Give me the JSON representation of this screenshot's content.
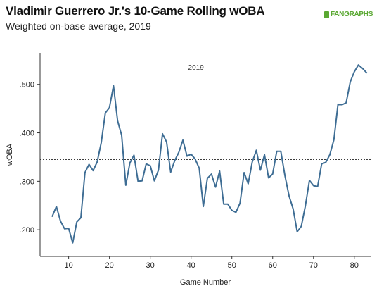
{
  "header": {
    "title": "Vladimir Guerrero Jr.'s 10-Game Rolling wOBA",
    "subtitle": "Weighted on-base average, 2019",
    "logo_text": "FANGRAPHS",
    "logo_color": "#5aa832"
  },
  "chart_data": {
    "type": "line",
    "title": "Vladimir Guerrero Jr.'s 10-Game Rolling wOBA",
    "subtitle": "Weighted on-base average, 2019",
    "xlabel": "Game Number",
    "ylabel": "wOBA",
    "annotation": "2019",
    "xlim": [
      3,
      84
    ],
    "ylim": [
      0.145,
      0.565
    ],
    "xticks": [
      10,
      20,
      30,
      40,
      50,
      60,
      70,
      80
    ],
    "yticks": [
      0.2,
      0.3,
      0.4,
      0.5
    ],
    "ytick_labels": [
      ".200",
      ".300",
      ".400",
      ".500"
    ],
    "line_color": "#3e6d94",
    "grid": false,
    "reference_line": {
      "value": 0.345,
      "style": "dotted"
    },
    "series": [
      {
        "x": [
          6,
          7,
          8,
          9,
          10,
          11,
          12,
          13,
          14,
          15,
          16,
          17,
          18,
          19,
          20,
          21,
          22,
          23,
          24,
          25,
          26,
          27,
          28,
          29,
          30,
          31,
          32,
          33,
          34,
          35,
          36,
          37,
          38,
          39,
          40,
          41,
          42,
          43,
          44,
          45,
          46,
          47,
          48,
          49,
          50,
          51,
          52,
          53,
          54,
          55,
          56,
          57,
          58,
          59,
          60,
          61,
          62,
          63,
          64,
          65,
          66,
          67,
          68,
          69,
          70,
          71,
          72,
          73,
          74,
          75,
          76,
          77,
          78,
          79,
          80,
          81,
          82,
          83
        ],
        "values": [
          0.228,
          0.248,
          0.218,
          0.202,
          0.203,
          0.173,
          0.216,
          0.225,
          0.318,
          0.335,
          0.322,
          0.34,
          0.38,
          0.441,
          0.452,
          0.497,
          0.425,
          0.395,
          0.292,
          0.338,
          0.354,
          0.3,
          0.301,
          0.336,
          0.332,
          0.301,
          0.323,
          0.398,
          0.381,
          0.319,
          0.343,
          0.36,
          0.385,
          0.352,
          0.356,
          0.346,
          0.327,
          0.248,
          0.306,
          0.315,
          0.288,
          0.321,
          0.253,
          0.253,
          0.24,
          0.236,
          0.255,
          0.318,
          0.295,
          0.34,
          0.364,
          0.323,
          0.355,
          0.307,
          0.315,
          0.362,
          0.362,
          0.312,
          0.27,
          0.243,
          0.196,
          0.207,
          0.249,
          0.302,
          0.291,
          0.289,
          0.336,
          0.339,
          0.355,
          0.386,
          0.459,
          0.458,
          0.462,
          0.505,
          0.526,
          0.54,
          0.533,
          0.524
        ]
      }
    ]
  }
}
